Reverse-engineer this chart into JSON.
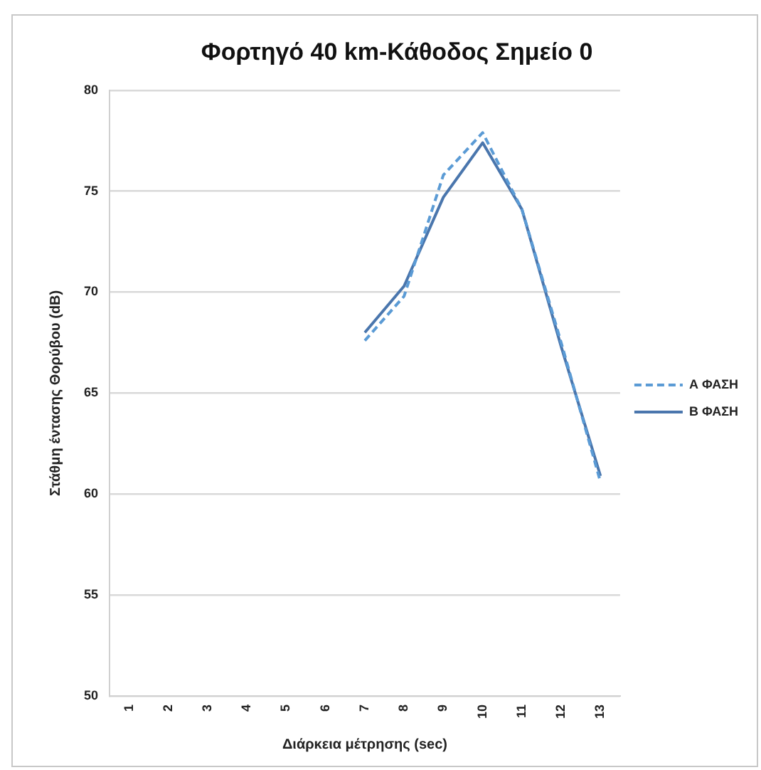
{
  "chart_data": {
    "type": "line",
    "title": "Φορτηγό 40 km-Κάθοδος Σημείο 0",
    "xlabel": "Διάρκεια μέτρησης (sec)",
    "ylabel": "Στάθμη έντασης Θορύβου (dB)",
    "categories": [
      "1",
      "2",
      "3",
      "4",
      "5",
      "6",
      "7",
      "8",
      "9",
      "10",
      "11",
      "12",
      "13"
    ],
    "series": [
      {
        "name": "Α ΦΑΣΗ",
        "color": "#5b9bd5",
        "line_style": "dashed",
        "values": [
          null,
          null,
          null,
          null,
          null,
          null,
          67.6,
          69.8,
          75.8,
          77.9,
          74.1,
          67.5,
          60.6
        ]
      },
      {
        "name": "Β ΦΑΣΗ",
        "color": "#4a76ad",
        "line_style": "solid",
        "values": [
          null,
          null,
          null,
          null,
          null,
          null,
          68.0,
          70.3,
          74.7,
          77.4,
          74.1,
          67.3,
          60.9
        ]
      }
    ],
    "ylim": [
      50,
      80
    ],
    "yticks": [
      50,
      55,
      60,
      65,
      70,
      75,
      80
    ],
    "grid": "y",
    "legend": "right",
    "marker": "none"
  }
}
